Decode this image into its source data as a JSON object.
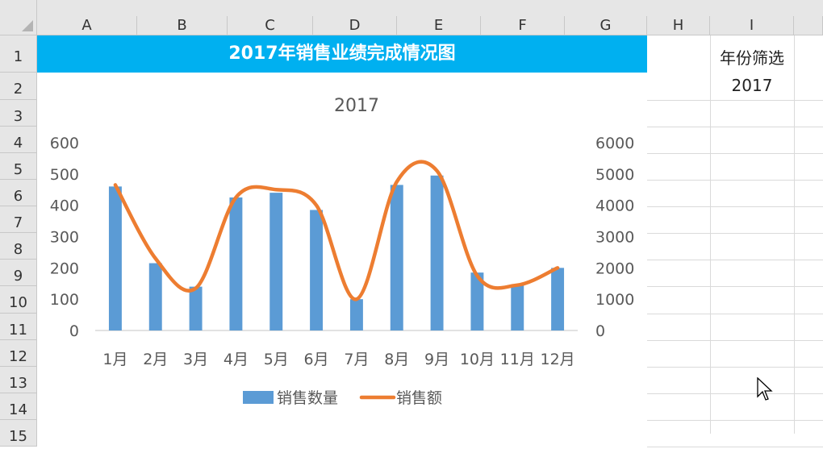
{
  "columns": [
    "A",
    "B",
    "C",
    "D",
    "E",
    "F",
    "G",
    "H",
    "I"
  ],
  "rows": [
    "1",
    "2",
    "3",
    "4",
    "5",
    "6",
    "7",
    "8",
    "9",
    "10",
    "11",
    "12",
    "13",
    "14",
    "15"
  ],
  "banner_title": "2017年销售业绩完成情况图",
  "filter": {
    "label": "年份筛选",
    "value": "2017"
  },
  "colors": {
    "banner": "#00b0f0",
    "bars": "#5b9bd5",
    "line": "#ed7d31"
  },
  "chart_data": {
    "type": "bar+line",
    "title": "2017",
    "categories": [
      "1月",
      "2月",
      "3月",
      "4月",
      "5月",
      "6月",
      "7月",
      "8月",
      "9月",
      "10月",
      "11月",
      "12月"
    ],
    "series": [
      {
        "name": "销售数量",
        "type": "bar",
        "axis": "left",
        "values": [
          460,
          215,
          140,
          425,
          440,
          385,
          100,
          465,
          495,
          185,
          145,
          200
        ]
      },
      {
        "name": "销售额",
        "type": "line",
        "axis": "right",
        "smooth": true,
        "values": [
          4650,
          2300,
          1350,
          4250,
          4500,
          4000,
          1000,
          4750,
          5100,
          1750,
          1450,
          2000
        ]
      }
    ],
    "y_left": {
      "min": 0,
      "max": 600,
      "ticks": [
        "0",
        "100",
        "200",
        "300",
        "400",
        "500",
        "600"
      ]
    },
    "y_right": {
      "min": 0,
      "max": 6000,
      "ticks": [
        "0",
        "1000",
        "2000",
        "3000",
        "4000",
        "5000",
        "6000"
      ]
    },
    "legend_position": "bottom",
    "grid": false
  }
}
